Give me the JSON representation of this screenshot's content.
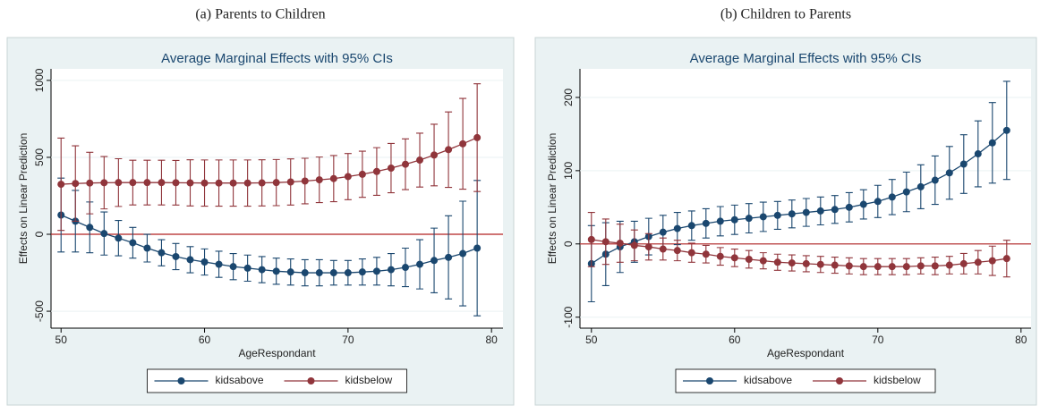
{
  "chart_data": [
    {
      "type": "errorbar-line",
      "caption": "(a) Parents to Children",
      "title": "Average Marginal Effects with 95% CIs",
      "x_label": "AgeRespondant",
      "y_label": "Effects on Linear Prediction",
      "x": [
        50,
        51,
        52,
        53,
        54,
        55,
        56,
        57,
        58,
        59,
        60,
        61,
        62,
        63,
        64,
        65,
        66,
        67,
        68,
        69,
        70,
        71,
        72,
        73,
        74,
        75,
        76,
        77,
        78,
        79
      ],
      "series": [
        {
          "name": "kidsabove",
          "color": "#1a476f",
          "values": [
            125,
            85,
            45,
            5,
            -25,
            -55,
            -90,
            -120,
            -145,
            -165,
            -180,
            -195,
            -210,
            -220,
            -230,
            -240,
            -245,
            -250,
            -250,
            -250,
            -250,
            -245,
            -240,
            -230,
            -215,
            -195,
            -170,
            -150,
            -125,
            -90
          ],
          "errors": [
            240,
            200,
            165,
            140,
            115,
            100,
            90,
            85,
            85,
            85,
            85,
            85,
            85,
            85,
            85,
            85,
            85,
            85,
            85,
            80,
            80,
            85,
            90,
            105,
            125,
            160,
            210,
            270,
            340,
            440
          ]
        },
        {
          "name": "kidsbelow",
          "color": "#90353b",
          "values": [
            325,
            330,
            333,
            335,
            336,
            336,
            336,
            336,
            335,
            334,
            333,
            333,
            333,
            333,
            334,
            336,
            340,
            346,
            354,
            362,
            375,
            390,
            408,
            430,
            455,
            482,
            515,
            550,
            588,
            628
          ],
          "errors": [
            300,
            245,
            200,
            170,
            155,
            145,
            145,
            145,
            145,
            150,
            150,
            150,
            150,
            150,
            150,
            150,
            150,
            148,
            148,
            150,
            150,
            150,
            155,
            160,
            165,
            175,
            200,
            245,
            295,
            350
          ]
        }
      ],
      "xlim": [
        49.3,
        80.8
      ],
      "xticks": [
        50,
        60,
        70,
        80
      ],
      "ylim": [
        -610,
        1075
      ],
      "yticks": [
        -500,
        0,
        500,
        1000
      ],
      "reference_line": 0,
      "reference_color": "#b22222",
      "grid": true,
      "legend": "bottom"
    },
    {
      "type": "errorbar-line",
      "caption": "(b) Children to Parents",
      "title": "Average Marginal Effects with 95% CIs",
      "x_label": "AgeRespondant",
      "y_label": "Effects on Linear Prediction",
      "x": [
        50,
        51,
        52,
        53,
        54,
        55,
        56,
        57,
        58,
        59,
        60,
        61,
        62,
        63,
        64,
        65,
        66,
        67,
        68,
        69,
        70,
        71,
        72,
        73,
        74,
        75,
        76,
        77,
        78,
        79
      ],
      "series": [
        {
          "name": "kidsabove",
          "color": "#1a476f",
          "values": [
            -27,
            -14,
            -4,
            3,
            10,
            16,
            21,
            25,
            28,
            31,
            33,
            35,
            37,
            39,
            41,
            43,
            45,
            47,
            50,
            54,
            58,
            64,
            71,
            78,
            87,
            97,
            109,
            123,
            138,
            155
          ],
          "errors": [
            52,
            43,
            35,
            28,
            25,
            23,
            22,
            20,
            20,
            20,
            20,
            20,
            20,
            19,
            19,
            19,
            19,
            19,
            20,
            20,
            22,
            24,
            27,
            30,
            33,
            36,
            40,
            45,
            55,
            67
          ]
        },
        {
          "name": "kidsbelow",
          "color": "#90353b",
          "values": [
            6,
            3,
            1,
            -2,
            -4,
            -7,
            -9,
            -12,
            -14,
            -17,
            -19,
            -21,
            -23,
            -25,
            -26,
            -27,
            -28,
            -29,
            -30,
            -31,
            -31,
            -31,
            -31,
            -30,
            -30,
            -29,
            -27,
            -25,
            -23,
            -20
          ],
          "errors": [
            37,
            31,
            26,
            21,
            18,
            15,
            14,
            13,
            12,
            12,
            12,
            12,
            11,
            11,
            11,
            11,
            11,
            11,
            11,
            11,
            11,
            11,
            11,
            11,
            12,
            12,
            14,
            16,
            20,
            25
          ]
        }
      ],
      "xlim": [
        49.2,
        80.7
      ],
      "xticks": [
        50,
        60,
        70,
        80
      ],
      "ylim": [
        -115,
        239
      ],
      "yticks": [
        -100,
        0,
        100,
        200
      ],
      "reference_line": 0,
      "reference_color": "#b22222",
      "grid": true,
      "legend": "bottom"
    }
  ]
}
